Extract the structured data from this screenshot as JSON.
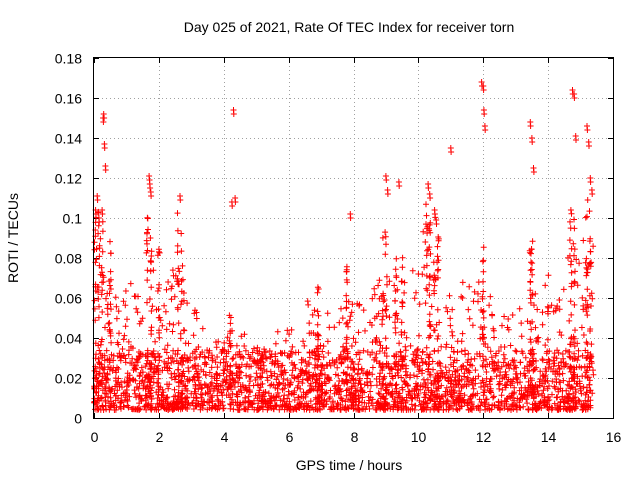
{
  "chart_data": {
    "type": "scatter",
    "title": "Day 025 of 2021, Rate Of TEC Index for receiver torn",
    "xlabel": "GPS time / hours",
    "ylabel": "ROTI / TECUs",
    "xlim": [
      0,
      16
    ],
    "ylim": [
      0,
      0.18
    ],
    "xticks": [
      0,
      2,
      4,
      6,
      8,
      10,
      12,
      14,
      16
    ],
    "yticks": [
      0,
      0.02,
      0.04,
      0.06,
      0.08,
      0.1,
      0.12,
      0.14,
      0.16,
      0.18
    ],
    "xtick_labels": [
      "0",
      "2",
      "4",
      "6",
      "8",
      "10",
      "12",
      "14",
      "16"
    ],
    "ytick_labels": [
      "0",
      "0.02",
      "0.04",
      "0.06",
      "0.08",
      "0.1",
      "0.12",
      "0.14",
      "0.16",
      "0.18"
    ],
    "grid": true,
    "marker": "+",
    "color": "#ff0000",
    "time_range_hours": [
      0,
      15.4
    ],
    "series_envelope": {
      "name": "ROTI",
      "x": [
        0.0,
        0.2,
        0.4,
        0.6,
        0.8,
        1.0,
        1.2,
        1.4,
        1.6,
        1.8,
        2.0,
        2.2,
        2.4,
        2.6,
        2.8,
        3.0,
        3.2,
        3.4,
        3.6,
        3.8,
        4.0,
        4.2,
        4.4,
        4.6,
        4.8,
        5.0,
        5.2,
        5.4,
        5.6,
        5.8,
        6.0,
        6.2,
        6.4,
        6.6,
        6.8,
        7.0,
        7.2,
        7.4,
        7.6,
        7.8,
        8.0,
        8.2,
        8.4,
        8.6,
        8.8,
        9.0,
        9.2,
        9.4,
        9.6,
        9.8,
        10.0,
        10.2,
        10.4,
        10.6,
        10.8,
        11.0,
        11.2,
        11.4,
        11.6,
        11.8,
        12.0,
        12.2,
        12.4,
        12.6,
        12.8,
        13.0,
        13.2,
        13.4,
        13.6,
        13.8,
        14.0,
        14.2,
        14.4,
        14.6,
        14.8,
        15.0,
        15.2,
        15.4
      ],
      "typical_max": [
        0.1,
        0.09,
        0.08,
        0.06,
        0.06,
        0.07,
        0.07,
        0.06,
        0.08,
        0.07,
        0.07,
        0.06,
        0.07,
        0.08,
        0.06,
        0.05,
        0.05,
        0.04,
        0.04,
        0.05,
        0.05,
        0.04,
        0.04,
        0.04,
        0.035,
        0.035,
        0.035,
        0.04,
        0.04,
        0.04,
        0.04,
        0.045,
        0.05,
        0.055,
        0.06,
        0.05,
        0.05,
        0.055,
        0.06,
        0.06,
        0.065,
        0.06,
        0.06,
        0.065,
        0.07,
        0.075,
        0.07,
        0.06,
        0.065,
        0.07,
        0.09,
        0.09,
        0.08,
        0.075,
        0.07,
        0.06,
        0.06,
        0.065,
        0.07,
        0.07,
        0.07,
        0.06,
        0.055,
        0.05,
        0.045,
        0.05,
        0.07,
        0.075,
        0.06,
        0.06,
        0.07,
        0.065,
        0.06,
        0.08,
        0.08,
        0.09,
        0.1,
        0.09
      ]
    },
    "outliers": {
      "x": [
        0.05,
        0.1,
        0.15,
        0.25,
        0.28,
        0.3,
        0.32,
        0.35,
        1.7,
        1.72,
        1.75,
        2.65,
        4.25,
        4.3,
        4.35,
        7.9,
        9.0,
        9.05,
        9.4,
        10.3,
        10.35,
        10.5,
        10.55,
        11.0,
        11.95,
        12.0,
        12.02,
        12.05,
        13.45,
        13.5,
        13.55,
        14.75,
        14.8,
        14.85,
        15.2,
        15.25,
        15.3,
        15.35
      ],
      "y": [
        0.104,
        0.111,
        0.1,
        0.104,
        0.15,
        0.152,
        0.137,
        0.126,
        0.121,
        0.117,
        0.113,
        0.111,
        0.108,
        0.154,
        0.11,
        0.102,
        0.121,
        0.114,
        0.118,
        0.117,
        0.112,
        0.104,
        0.099,
        0.135,
        0.168,
        0.166,
        0.154,
        0.146,
        0.148,
        0.14,
        0.125,
        0.164,
        0.162,
        0.141,
        0.146,
        0.138,
        0.12,
        0.114
      ]
    }
  }
}
